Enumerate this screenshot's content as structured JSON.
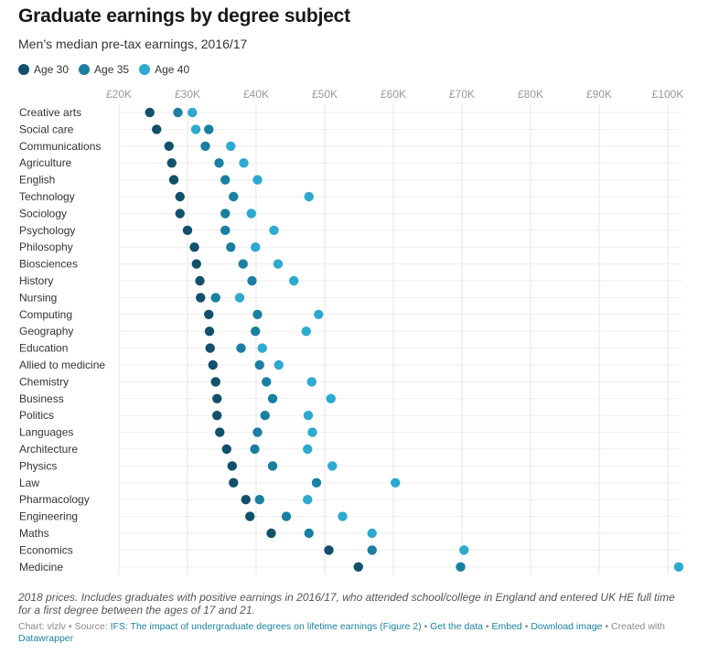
{
  "title": "Graduate earnings by degree subject",
  "subtitle": "Men’s median pre-tax earnings, 2016/17",
  "legend": [
    {
      "label": "Age 30",
      "color": "#12506b"
    },
    {
      "label": "Age 35",
      "color": "#1a7fa0"
    },
    {
      "label": "Age 40",
      "color": "#2ea9d0"
    }
  ],
  "chart_data": {
    "type": "scatter",
    "subtype": "dot-plot",
    "xlim": [
      20000,
      102000
    ],
    "x_ticks": [
      20000,
      30000,
      40000,
      50000,
      60000,
      70000,
      80000,
      90000,
      100000
    ],
    "x_tick_labels": [
      "£20K",
      "£30K",
      "£40K",
      "£50K",
      "£60K",
      "£70K",
      "£80K",
      "£90K",
      "£100K"
    ],
    "categories": [
      "Creative arts",
      "Social care",
      "Communications",
      "Agriculture",
      "English",
      "Technology",
      "Sociology",
      "Psychology",
      "Philosophy",
      "Biosciences",
      "History",
      "Nursing",
      "Computing",
      "Geography",
      "Education",
      "Allied to medicine",
      "Chemistry",
      "Business",
      "Politics",
      "Languages",
      "Architecture",
      "Physics",
      "Law",
      "Pharmacology",
      "Engineering",
      "Maths",
      "Economics",
      "Medicine"
    ],
    "series": [
      {
        "name": "Age 30",
        "color": "#12506b",
        "values": [
          24500,
          25500,
          27300,
          27700,
          28000,
          28900,
          28900,
          30000,
          31000,
          31300,
          31800,
          31900,
          33100,
          33200,
          33300,
          33700,
          34100,
          34300,
          34300,
          34700,
          35700,
          36500,
          36700,
          38500,
          39100,
          42200,
          50600,
          54900
        ]
      },
      {
        "name": "Age 35",
        "color": "#1a7fa0",
        "values": [
          28600,
          33100,
          32600,
          34600,
          35500,
          36700,
          35500,
          35500,
          36300,
          38100,
          39400,
          34100,
          40200,
          39900,
          37800,
          40500,
          41500,
          42400,
          41300,
          40200,
          39800,
          42400,
          48800,
          40500,
          44400,
          47700,
          56900,
          69800
        ]
      },
      {
        "name": "Age 40",
        "color": "#2ea9d0",
        "values": [
          30700,
          31200,
          36300,
          38200,
          40200,
          47700,
          39300,
          42600,
          39900,
          43200,
          45500,
          37600,
          49100,
          47300,
          40900,
          43300,
          48100,
          50900,
          47600,
          48200,
          47500,
          51100,
          60300,
          47500,
          52600,
          56900,
          70300,
          101600
        ]
      }
    ]
  },
  "notes": "2018 prices. Includes graduates with positive earnings in 2016/17, who attended school/college in England and entered UK HE full time for a first degree between the ages of 17 and 21.",
  "footer": {
    "chart_by": "Chart: vlzlv",
    "source_prefix": "• Source:",
    "source_link": "IFS: The impact of undergraduate degrees on lifetime earnings (Figure 2)",
    "sep": "•",
    "get_data": "Get the data",
    "embed": "Embed",
    "download": "Download image",
    "created_prefix": "• Created with",
    "datawrapper": "Datawrapper"
  }
}
